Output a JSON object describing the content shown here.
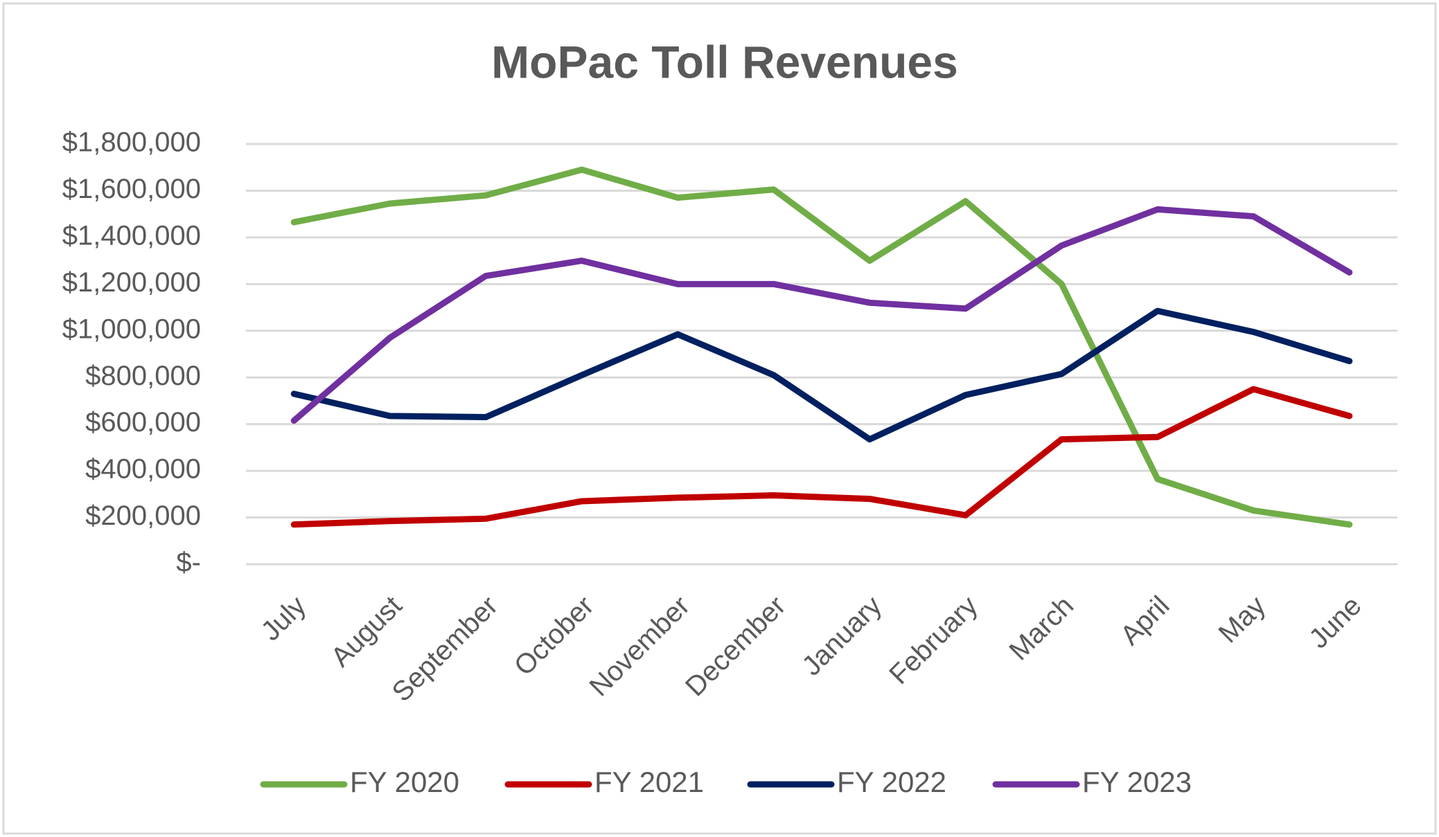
{
  "chart_data": {
    "type": "line",
    "title": "MoPac Toll Revenues",
    "categories": [
      "July",
      "August",
      "September",
      "October",
      "November",
      "December",
      "January",
      "February",
      "March",
      "April",
      "May",
      "June"
    ],
    "series": [
      {
        "name": "FY 2020",
        "color": "#70ad47",
        "values": [
          1465000,
          1545000,
          1580000,
          1690000,
          1570000,
          1605000,
          1300000,
          1555000,
          1200000,
          365000,
          230000,
          170000
        ]
      },
      {
        "name": "FY 2021",
        "color": "#c00000",
        "values": [
          170000,
          185000,
          195000,
          270000,
          285000,
          295000,
          280000,
          210000,
          535000,
          545000,
          750000,
          635000
        ]
      },
      {
        "name": "FY 2022",
        "color": "#002060",
        "values": [
          730000,
          635000,
          630000,
          810000,
          985000,
          810000,
          535000,
          725000,
          815000,
          1085000,
          995000,
          870000
        ]
      },
      {
        "name": "FY 2023",
        "color": "#7030a0",
        "values": [
          615000,
          970000,
          1235000,
          1300000,
          1200000,
          1200000,
          1120000,
          1095000,
          1365000,
          1520000,
          1490000,
          1250000
        ]
      }
    ],
    "ylim": [
      0,
      1800000
    ],
    "yticks": [
      {
        "value": 0,
        "label": "$-"
      },
      {
        "value": 200000,
        "label": "$200,000"
      },
      {
        "value": 400000,
        "label": "$400,000"
      },
      {
        "value": 600000,
        "label": "$600,000"
      },
      {
        "value": 800000,
        "label": "$800,000"
      },
      {
        "value": 1000000,
        "label": "$1,000,000"
      },
      {
        "value": 1200000,
        "label": "$1,200,000"
      },
      {
        "value": 1400000,
        "label": "$1,400,000"
      },
      {
        "value": 1600000,
        "label": "$1,600,000"
      },
      {
        "value": 1800000,
        "label": "$1,800,000"
      }
    ],
    "grid": true,
    "legend": "bottom"
  }
}
